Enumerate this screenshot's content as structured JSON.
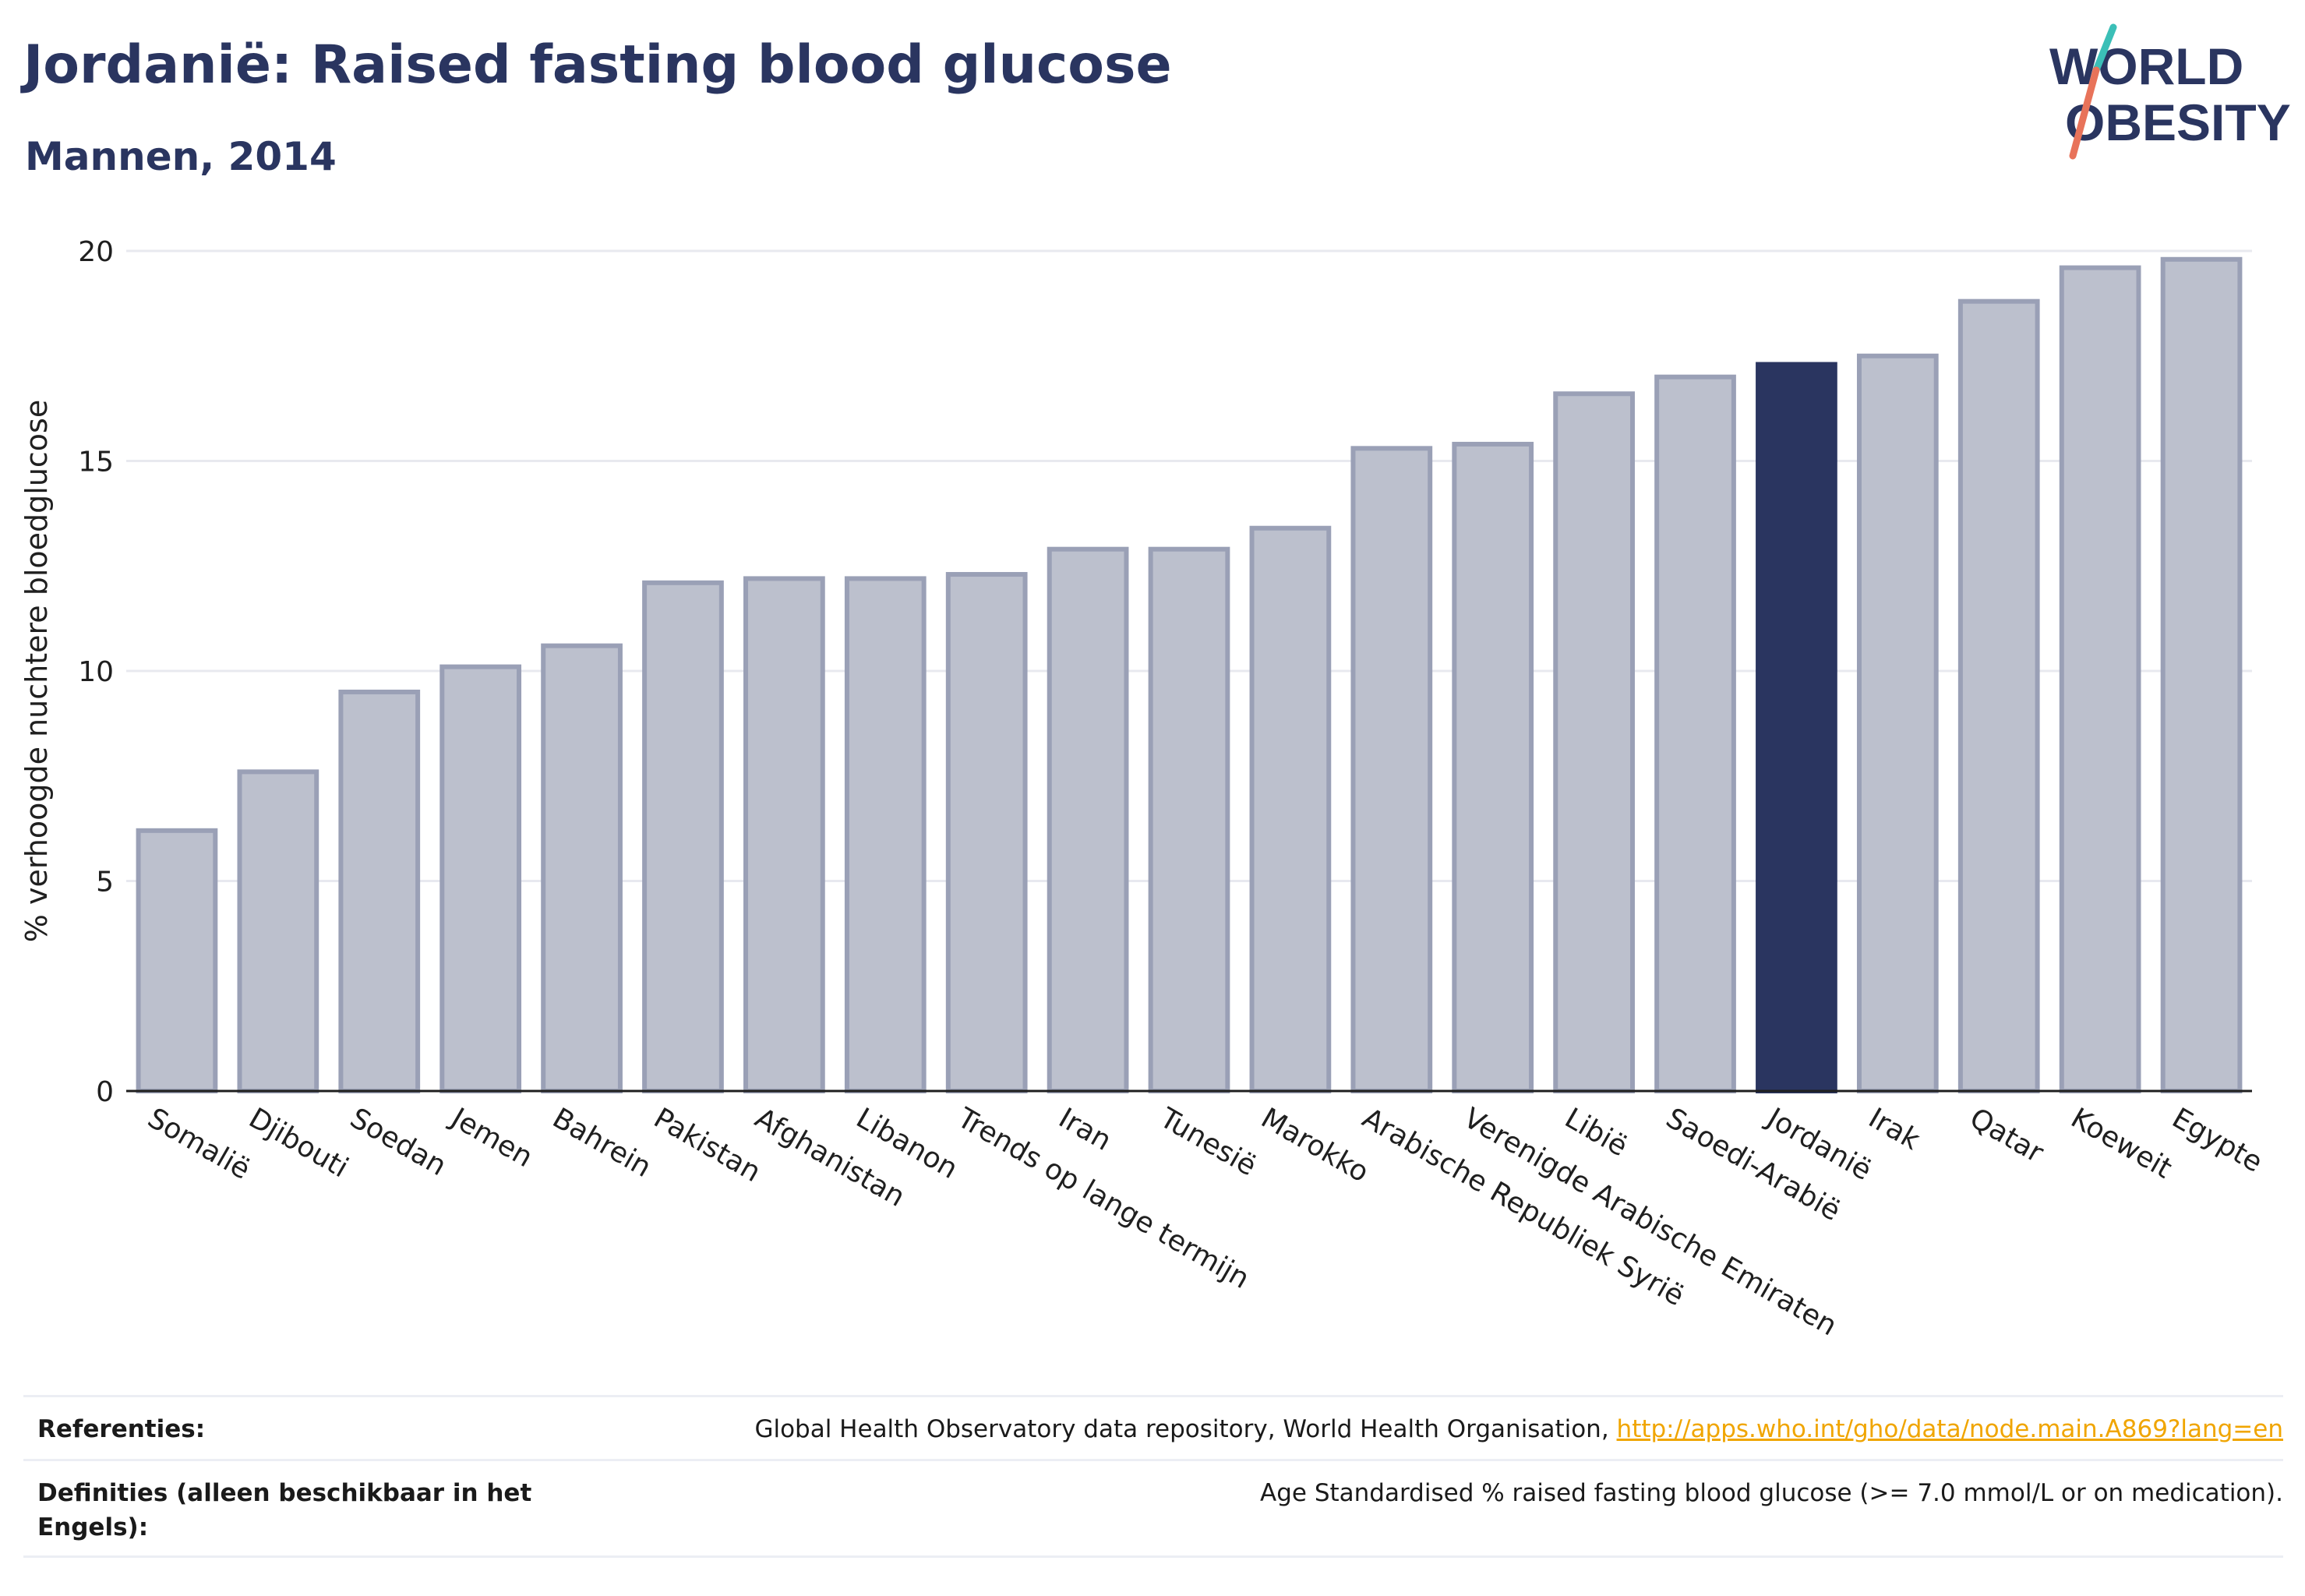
{
  "header": {
    "title": "Jordanië: Raised fasting blood glucose",
    "subtitle": "Mannen, 2014"
  },
  "logo": {
    "line1": "WORLD",
    "line2": "OBESITY",
    "accent_teal": "#3bbfb7",
    "accent_coral": "#e8735a",
    "color": "#2a3560"
  },
  "chart_data": {
    "type": "bar",
    "ylabel": "% verhoogde nuchtere bloedglucose",
    "ylim": [
      0,
      20
    ],
    "yticks": [
      0,
      5,
      10,
      15,
      20
    ],
    "grid": true,
    "categories": [
      "Somalië",
      "Djibouti",
      "Soedan",
      "Jemen",
      "Bahrein",
      "Pakistan",
      "Afghanistan",
      "Libanon",
      "Trends op lange termijn",
      "Iran",
      "Tunesië",
      "Marokko",
      "Arabische Republiek Syrië",
      "Verenigde Arabische Emiraten",
      "Libië",
      "Saoedi-Arabië",
      "Jordanië",
      "Irak",
      "Qatar",
      "Koeweit",
      "Egypte"
    ],
    "values": [
      6.2,
      7.6,
      9.5,
      10.1,
      10.6,
      12.1,
      12.2,
      12.2,
      12.3,
      12.9,
      12.9,
      13.4,
      15.3,
      15.4,
      16.6,
      17.0,
      17.3,
      17.5,
      18.8,
      19.6,
      19.8
    ],
    "highlight": "Jordanië",
    "colors": {
      "bar": "#bcc0cd",
      "bar_border": "#9aa0b6",
      "highlight": "#2a3560",
      "grid": "#e8e9ef",
      "axis": "#1f1f1f"
    }
  },
  "footer": {
    "references_label": "Referenties:",
    "references_text": "Global Health Observatory data repository, World Health Organisation, ",
    "references_link": "http://apps.who.int/gho/data/node.main.A869?lang=en",
    "definitions_label": "Definities (alleen beschikbaar in het Engels):",
    "definitions_text": "Age Standardised % raised fasting blood glucose (>= 7.0 mmol/L or on medication)."
  }
}
